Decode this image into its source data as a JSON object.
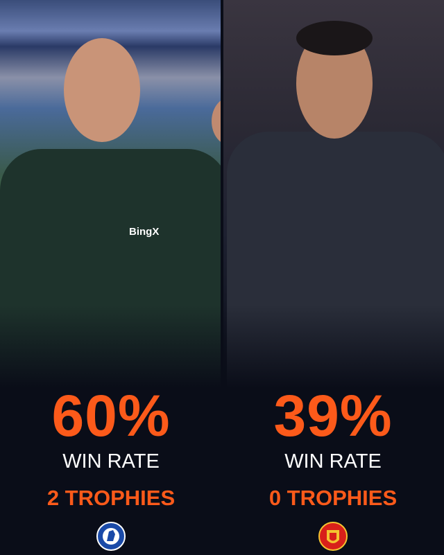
{
  "left": {
    "win_rate": "60%",
    "win_rate_label": "WIN RATE",
    "trophies": "2 TROPHIES",
    "crest": "CHELSEA",
    "shirt_sponsor": "BingX"
  },
  "right": {
    "win_rate": "39%",
    "win_rate_label": "WIN RATE",
    "trophies": "0 TROPHIES",
    "crest": "MANCHESTER UNITED"
  },
  "colors": {
    "accent": "#fc5a1a",
    "background": "#0a0d18",
    "chelsea_blue": "#1a4aa8",
    "united_red": "#d8201a"
  }
}
